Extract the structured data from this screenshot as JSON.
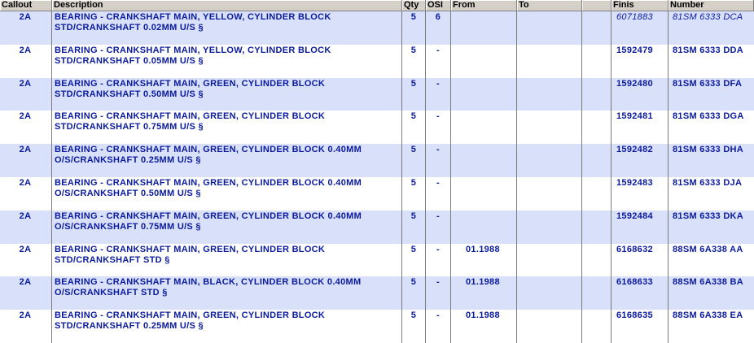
{
  "table": {
    "header": [
      "Callout",
      "Description",
      "Qty",
      "OSI",
      "From",
      "To",
      "Finis",
      "Number"
    ],
    "rows": [
      {
        "callout": "2A",
        "description": [
          "BEARING - CRANKSHAFT MAIN, YELLOW, CYLINDER BLOCK",
          "STD/CRANKSHAFT 0.02MM U/S §"
        ],
        "qty": "5",
        "osi": "6",
        "finis": "6071883",
        "number": "81SM 6333 DCA"
      },
      {
        "callout": "2A",
        "description": [
          "BEARING - CRANKSHAFT MAIN, YELLOW, CYLINDER BLOCK",
          "STD/CRANKSHAFT 0.05MM U/S §"
        ],
        "qty": "5",
        "osi": "-",
        "finis": "1592479",
        "number": "81SM 6333 DDA"
      },
      {
        "callout": "2A",
        "description": [
          "BEARING - CRANKSHAFT MAIN, GREEN, CYLINDER BLOCK",
          "STD/CRANKSHAFT 0.50MM U/S §"
        ],
        "qty": "5",
        "osi": "-",
        "finis": "1592480",
        "number": "81SM 6333 DFA"
      },
      {
        "callout": "2A",
        "description": [
          "BEARING - CRANKSHAFT MAIN, GREEN, CYLINDER BLOCK",
          "STD/CRANKSHAFT 0.75MM U/S §"
        ],
        "qty": "5",
        "osi": "-",
        "finis": "1592481",
        "number": "81SM 6333 DGA"
      },
      {
        "callout": "2A",
        "description": [
          "BEARING - CRANKSHAFT MAIN, GREEN, CYLINDER BLOCK 0.40MM",
          "O/S/CRANKSHAFT 0.25MM U/S §"
        ],
        "qty": "5",
        "osi": "-",
        "finis": "1592482",
        "number": "81SM 6333 DHA"
      },
      {
        "callout": "2A",
        "description": [
          "BEARING - CRANKSHAFT MAIN, GREEN, CYLINDER BLOCK 0.40MM",
          "O/S/CRANKSHAFT 0.50MM U/S §"
        ],
        "qty": "5",
        "osi": "-",
        "finis": "1592483",
        "number": "81SM 6333 DJA"
      },
      {
        "callout": "2A",
        "description": [
          "BEARING - CRANKSHAFT MAIN, GREEN, CYLINDER BLOCK 0.40MM",
          "O/S/CRANKSHAFT 0.75MM U/S §"
        ],
        "qty": "5",
        "osi": "-",
        "finis": "1592484",
        "number": "81SM 6333 DKA"
      },
      {
        "callout": "2A",
        "description": [
          "BEARING - CRANKSHAFT MAIN, GREEN, CYLINDER BLOCK",
          "STD/CRANKSHAFT STD §"
        ],
        "qty": "5",
        "osi": "-",
        "from": "01.1988",
        "finis": "6168632",
        "number": "88SM 6A338 AA"
      },
      {
        "callout": "2A",
        "description": [
          "BEARING - CRANKSHAFT MAIN, BLACK, CYLINDER BLOCK 0.40MM",
          "O/S/CRANKSHAFT STD §"
        ],
        "qty": "5",
        "osi": "-",
        "from": "01.1988",
        "finis": "6168633",
        "number": "88SM 6A338 BA"
      },
      {
        "callout": "2A",
        "description": [
          "BEARING - CRANKSHAFT MAIN, GREEN, CYLINDER BLOCK",
          "STD/CRANKSHAFT 0.25MM U/S §"
        ],
        "qty": "5",
        "osi": "-",
        "from": "01.1988",
        "finis": "6168635",
        "number": "88SM 6A338 EA"
      }
    ]
  }
}
